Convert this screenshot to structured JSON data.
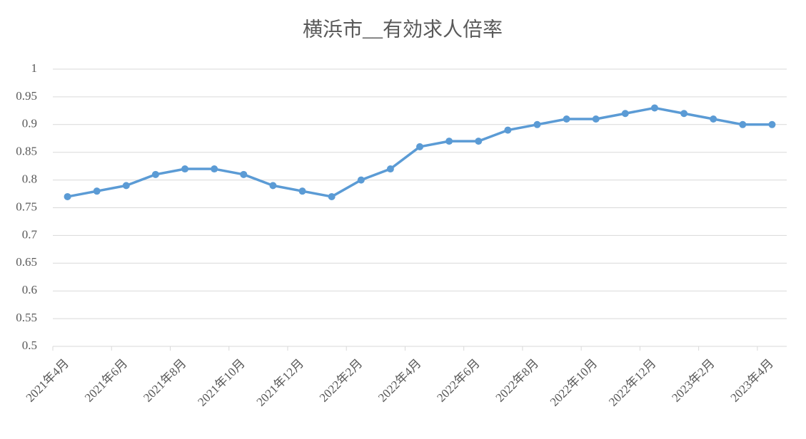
{
  "chart_data": {
    "type": "line",
    "title": "横浜市__有効求人倍率",
    "categories": [
      "2021年4月",
      null,
      "2021年6月",
      null,
      "2021年8月",
      null,
      "2021年10月",
      null,
      "2021年12月",
      null,
      "2022年2月",
      null,
      "2022年4月",
      null,
      "2022年6月",
      null,
      "2022年8月",
      null,
      "2022年10月",
      null,
      "2022年12月",
      null,
      "2023年2月",
      null,
      "2023年4月"
    ],
    "series": [
      {
        "name": "有効求人倍率",
        "color": "#5b9bd5",
        "values": [
          0.77,
          0.78,
          0.79,
          0.81,
          0.82,
          0.82,
          0.81,
          0.79,
          0.78,
          0.77,
          0.8,
          0.82,
          0.86,
          0.87,
          0.87,
          0.89,
          0.9,
          0.91,
          0.91,
          0.92,
          0.93,
          0.92,
          0.91,
          0.9,
          0.9
        ]
      }
    ],
    "ylim": [
      0.5,
      1
    ],
    "yticks": [
      0.5,
      0.55,
      0.6,
      0.65,
      0.7,
      0.75,
      0.8,
      0.85,
      0.9,
      0.95,
      1
    ],
    "grid": true
  }
}
